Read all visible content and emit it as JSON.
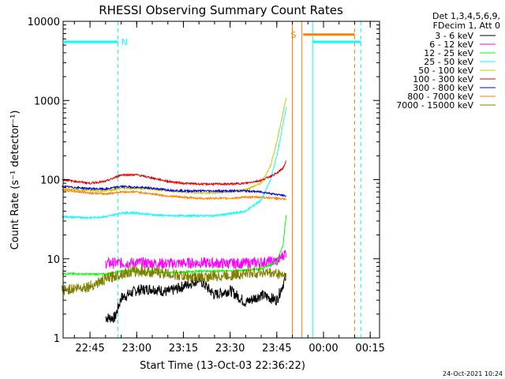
{
  "chart_data": {
    "type": "line",
    "title": "RHESSI Observing Summary Count Rates",
    "xlabel": "Start Time (13-Oct-03 22:36:22)",
    "ylabel": "Count Rate (s⁻¹ detector⁻¹)",
    "yscale": "log",
    "ylim": [
      1,
      10000
    ],
    "xlim": [
      "22:36:22",
      "00:18:00"
    ],
    "yticks": [
      "1",
      "10",
      "100",
      "1000",
      "10000"
    ],
    "xticks": [
      "22:45",
      "23:00",
      "23:15",
      "23:30",
      "23:45",
      "00:00",
      "00:15"
    ],
    "legend_header": [
      "Det 1,3,4,5,6,9,",
      "FDecim 1, Att 0"
    ],
    "legend_position": "top-right",
    "footer_date": "24-Oct-2021 10:24",
    "flags": [
      {
        "label": "N",
        "color": "#00ffff",
        "level": 5500,
        "from": "22:36:22",
        "to": "22:54:00"
      },
      {
        "label": "S",
        "color": "#ff8000",
        "level": 6800,
        "from": "23:53:30",
        "to": "00:10:00"
      },
      {
        "label": "",
        "color": "#00ffff",
        "level": 5500,
        "from": "23:56:30",
        "to": "00:12:00"
      }
    ],
    "vlines": [
      {
        "time": "22:36:22",
        "color": "#00ffff",
        "style": "solid"
      },
      {
        "time": "22:54:00",
        "color": "#00ffff",
        "style": "dashed"
      },
      {
        "time": "23:50:00",
        "color": "#ff8000",
        "style": "solid"
      },
      {
        "time": "23:53:00",
        "color": "#ff8000",
        "style": "solid"
      },
      {
        "time": "23:56:30",
        "color": "#00ffff",
        "style": "solid"
      },
      {
        "time": "00:10:00",
        "color": "#ff8000",
        "style": "dashed"
      },
      {
        "time": "00:12:00",
        "color": "#00ffff",
        "style": "dashed"
      }
    ],
    "series": [
      {
        "name": "3 - 6 keV",
        "color": "#000000",
        "x": [
          "22:50",
          "22:53",
          "22:55",
          "23:00",
          "23:05",
          "23:10",
          "23:15",
          "23:20",
          "23:25",
          "23:30",
          "23:35",
          "23:40",
          "23:45",
          "23:48"
        ],
        "y": [
          1.8,
          1.8,
          3.2,
          4.0,
          4.2,
          3.8,
          4.5,
          5.5,
          3.5,
          4.0,
          2.8,
          3.5,
          3.0,
          6.0
        ]
      },
      {
        "name": "6 - 12 keV",
        "color": "#ff00ff",
        "x": [
          "22:50",
          "22:55",
          "23:00",
          "23:05",
          "23:10",
          "23:15",
          "23:20",
          "23:25",
          "23:30",
          "23:35",
          "23:40",
          "23:45",
          "23:48"
        ],
        "y": [
          8.8,
          8.8,
          8.9,
          8.8,
          8.7,
          8.8,
          8.9,
          8.8,
          8.7,
          8.8,
          9.0,
          9.3,
          12.0
        ]
      },
      {
        "name": "12 - 25 keV",
        "color": "#00ff00",
        "x": [
          "22:36",
          "22:45",
          "22:50",
          "22:55",
          "23:00",
          "23:05",
          "23:10",
          "23:15",
          "23:20",
          "23:25",
          "23:30",
          "23:35",
          "23:40",
          "23:45",
          "23:47",
          "23:48"
        ],
        "y": [
          6.5,
          6.4,
          6.4,
          7.0,
          7.0,
          6.8,
          6.7,
          6.8,
          7.0,
          7.0,
          7.0,
          7.2,
          7.5,
          9.0,
          15.0,
          35.0
        ]
      },
      {
        "name": "25 - 50 keV",
        "color": "#00ffff",
        "x": [
          "22:36",
          "22:45",
          "22:50",
          "22:55",
          "23:00",
          "23:05",
          "23:10",
          "23:15",
          "23:20",
          "23:25",
          "23:30",
          "23:35",
          "23:40",
          "23:43",
          "23:45",
          "23:47",
          "23:48"
        ],
        "y": [
          34,
          33,
          34,
          38,
          38,
          36,
          35,
          35,
          35,
          35,
          37,
          40,
          55,
          100,
          200,
          500,
          800
        ]
      },
      {
        "name": "50 - 100 keV",
        "color": "#c8c800",
        "x": [
          "22:36",
          "22:45",
          "22:50",
          "22:55",
          "23:00",
          "23:05",
          "23:10",
          "23:15",
          "23:20",
          "23:25",
          "23:30",
          "23:35",
          "23:40",
          "23:43",
          "23:45",
          "23:47",
          "23:48"
        ],
        "y": [
          76,
          73,
          72,
          78,
          78,
          76,
          72,
          70,
          68,
          68,
          70,
          75,
          90,
          150,
          300,
          700,
          1100
        ]
      },
      {
        "name": "100 - 300 keV",
        "color": "#e00000",
        "x": [
          "22:36",
          "22:45",
          "22:50",
          "22:55",
          "23:00",
          "23:05",
          "23:10",
          "23:15",
          "23:20",
          "23:25",
          "23:30",
          "23:35",
          "23:40",
          "23:45",
          "23:47",
          "23:48"
        ],
        "y": [
          100,
          90,
          95,
          115,
          115,
          105,
          95,
          90,
          88,
          88,
          88,
          90,
          98,
          120,
          140,
          170
        ]
      },
      {
        "name": "300 - 800 keV",
        "color": "#0000e0",
        "x": [
          "22:36",
          "22:45",
          "22:50",
          "22:55",
          "23:00",
          "23:05",
          "23:10",
          "23:15",
          "23:20",
          "23:25",
          "23:30",
          "23:35",
          "23:40",
          "23:45",
          "23:48"
        ],
        "y": [
          82,
          77,
          76,
          82,
          80,
          78,
          74,
          72,
          72,
          72,
          72,
          72,
          70,
          65,
          62
        ]
      },
      {
        "name": "800 - 7000 keV",
        "color": "#ff8000",
        "x": [
          "22:36",
          "22:45",
          "22:50",
          "22:55",
          "23:00",
          "23:05",
          "23:10",
          "23:15",
          "23:20",
          "23:25",
          "23:30",
          "23:35",
          "23:40",
          "23:45",
          "23:48"
        ],
        "y": [
          74,
          68,
          66,
          70,
          70,
          66,
          62,
          60,
          58,
          58,
          58,
          60,
          60,
          58,
          56
        ]
      },
      {
        "name": "7000 - 15000 keV",
        "color": "#808000",
        "x": [
          "22:36",
          "22:45",
          "22:50",
          "22:55",
          "23:00",
          "23:05",
          "23:10",
          "23:15",
          "23:20",
          "23:25",
          "23:30",
          "23:35",
          "23:40",
          "23:45",
          "23:48"
        ],
        "y": [
          4.0,
          4.5,
          5.5,
          6.5,
          7.0,
          6.8,
          6.5,
          6.0,
          5.8,
          6.0,
          6.2,
          6.5,
          6.8,
          6.5,
          6.3
        ]
      }
    ]
  }
}
